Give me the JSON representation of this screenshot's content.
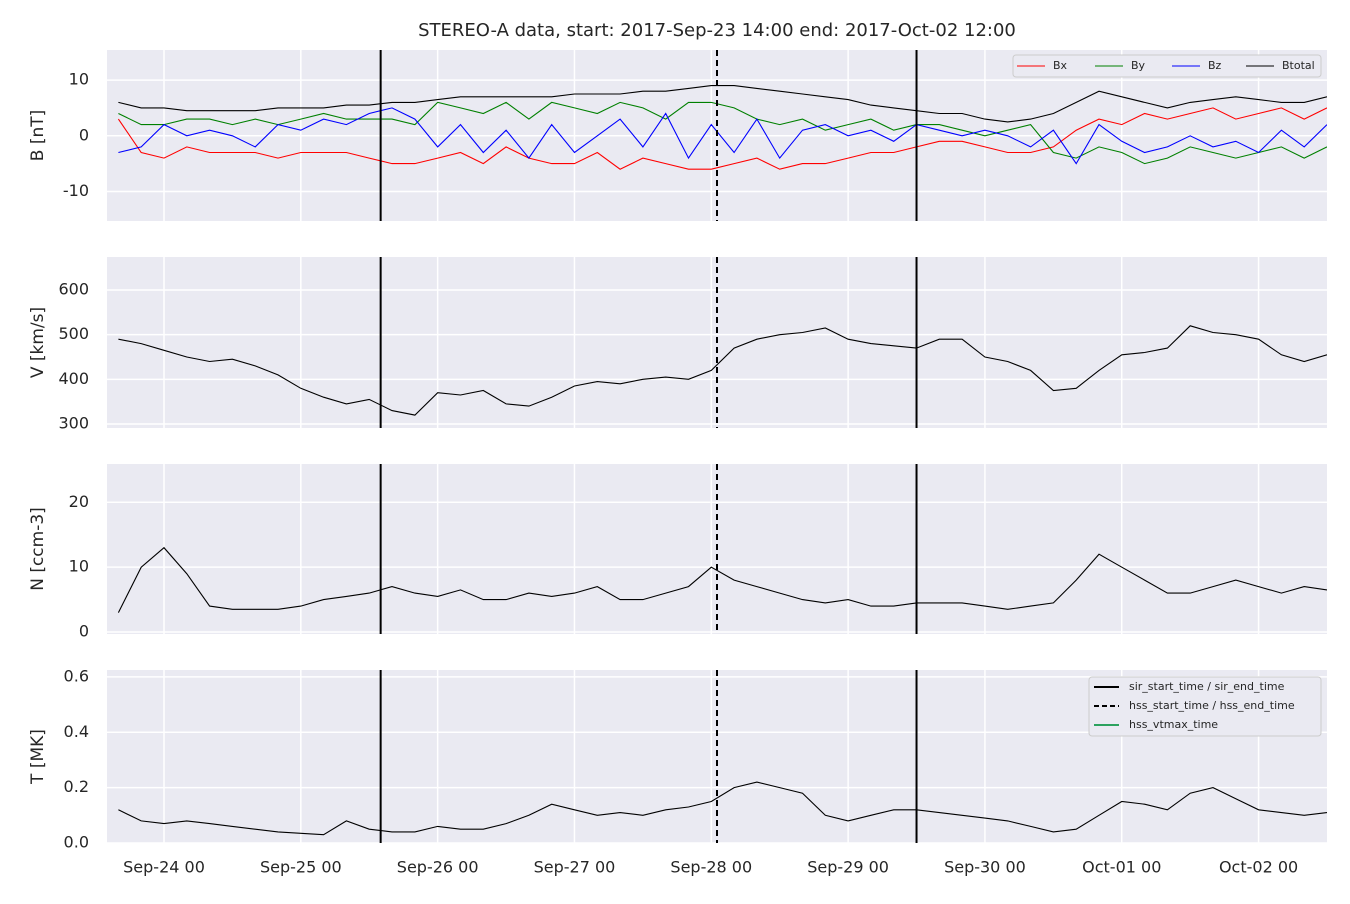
{
  "title": "STEREO-A data, start: 2017-Sep-23 14:00  end: 2017-Oct-02 12:00",
  "events": [
    {
      "name": "sir_start_time / sir_end_time",
      "color": "#000000",
      "dash": "solid",
      "times": [
        "2017-09-25 14:00",
        "2017-09-29 12:00"
      ]
    },
    {
      "name": "hss_start_time / hss_end_time",
      "color": "#000000",
      "dash": "dashed",
      "times": [
        "2017-09-28 01:00"
      ]
    },
    {
      "name": "hss_vtmax_time",
      "color": "#2ca25f",
      "dash": "solid",
      "times": []
    }
  ],
  "chart_data": [
    {
      "type": "line",
      "ylabel": "B [nT]",
      "ylim": [
        -15.3,
        15.4
      ],
      "yticks": [
        -10,
        0,
        10
      ],
      "grid": true,
      "legend": "upper right",
      "xlim": [
        "2017-09-23 14:00",
        "2017-10-02 12:00"
      ],
      "xticks": [
        {
          "value": "2017-09-24 00:00",
          "label": "Sep-24 00"
        },
        {
          "value": "2017-09-25 00:00",
          "label": "Sep-25 00"
        },
        {
          "value": "2017-09-26 00:00",
          "label": "Sep-26 00"
        },
        {
          "value": "2017-09-27 00:00",
          "label": "Sep-27 00"
        },
        {
          "value": "2017-09-28 00:00",
          "label": "Sep-28 00"
        },
        {
          "value": "2017-09-29 00:00",
          "label": "Sep-29 00"
        },
        {
          "value": "2017-09-30 00:00",
          "label": "Sep-30 00"
        },
        {
          "value": "2017-10-01 00:00",
          "label": "Oct-01 00"
        },
        {
          "value": "2017-10-02 00:00",
          "label": "Oct-02 00"
        }
      ],
      "x": [
        "2017-09-23 16:00",
        "2017-09-23 20:00",
        "2017-09-24 00:00",
        "2017-09-24 04:00",
        "2017-09-24 08:00",
        "2017-09-24 12:00",
        "2017-09-24 16:00",
        "2017-09-24 20:00",
        "2017-09-25 00:00",
        "2017-09-25 04:00",
        "2017-09-25 08:00",
        "2017-09-25 12:00",
        "2017-09-25 16:00",
        "2017-09-25 20:00",
        "2017-09-26 00:00",
        "2017-09-26 04:00",
        "2017-09-26 08:00",
        "2017-09-26 12:00",
        "2017-09-26 16:00",
        "2017-09-26 20:00",
        "2017-09-27 00:00",
        "2017-09-27 04:00",
        "2017-09-27 08:00",
        "2017-09-27 12:00",
        "2017-09-27 16:00",
        "2017-09-27 20:00",
        "2017-09-28 00:00",
        "2017-09-28 04:00",
        "2017-09-28 08:00",
        "2017-09-28 12:00",
        "2017-09-28 16:00",
        "2017-09-28 20:00",
        "2017-09-29 00:00",
        "2017-09-29 04:00",
        "2017-09-29 08:00",
        "2017-09-29 12:00",
        "2017-09-29 16:00",
        "2017-09-29 20:00",
        "2017-09-30 00:00",
        "2017-09-30 04:00",
        "2017-09-30 08:00",
        "2017-09-30 12:00",
        "2017-09-30 16:00",
        "2017-09-30 20:00",
        "2017-10-01 00:00",
        "2017-10-01 04:00",
        "2017-10-01 08:00",
        "2017-10-01 12:00",
        "2017-10-01 16:00",
        "2017-10-01 20:00",
        "2017-10-02 00:00",
        "2017-10-02 04:00",
        "2017-10-02 08:00",
        "2017-10-02 12:00"
      ],
      "series": [
        {
          "name": "Bx",
          "color": "#ff0000",
          "values": [
            3,
            -3,
            -4,
            -2,
            -3,
            -3,
            -3,
            -4,
            -3,
            -3,
            -3,
            -4,
            -5,
            -5,
            -4,
            -3,
            -5,
            -2,
            -4,
            -5,
            -5,
            -3,
            -6,
            -4,
            -5,
            -6,
            -6,
            -5,
            -4,
            -6,
            -5,
            -5,
            -4,
            -3,
            -3,
            -2,
            -1,
            -1,
            -2,
            -3,
            -3,
            -2,
            1,
            3,
            2,
            4,
            3,
            4,
            5,
            3,
            4,
            5,
            3,
            5
          ]
        },
        {
          "name": "By",
          "color": "#008000",
          "values": [
            4,
            2,
            2,
            3,
            3,
            2,
            3,
            2,
            3,
            4,
            3,
            3,
            3,
            2,
            6,
            5,
            4,
            6,
            3,
            6,
            5,
            4,
            6,
            5,
            3,
            6,
            6,
            5,
            3,
            2,
            3,
            1,
            2,
            3,
            1,
            2,
            2,
            1,
            0,
            1,
            2,
            -3,
            -4,
            -2,
            -3,
            -5,
            -4,
            -2,
            -3,
            -4,
            -3,
            -2,
            -4,
            -2
          ]
        },
        {
          "name": "Bz",
          "color": "#0000ff",
          "values": [
            -3,
            -2,
            2,
            0,
            1,
            0,
            -2,
            2,
            1,
            3,
            2,
            4,
            5,
            3,
            -2,
            2,
            -3,
            1,
            -4,
            2,
            -3,
            0,
            3,
            -2,
            4,
            -4,
            2,
            -3,
            3,
            -4,
            1,
            2,
            0,
            1,
            -1,
            2,
            1,
            0,
            1,
            0,
            -2,
            1,
            -5,
            2,
            -1,
            -3,
            -2,
            0,
            -2,
            -1,
            -3,
            1,
            -2,
            2
          ]
        },
        {
          "name": "Btotal",
          "color": "#000000",
          "values": [
            6,
            5,
            5,
            4.5,
            4.5,
            4.5,
            4.5,
            5,
            5,
            5,
            5.5,
            5.5,
            6,
            6,
            6.5,
            7,
            7,
            7,
            7,
            7,
            7.5,
            7.5,
            7.5,
            8,
            8,
            8.5,
            9,
            9,
            8.5,
            8,
            7.5,
            7,
            6.5,
            5.5,
            5,
            4.5,
            4,
            4,
            3,
            2.5,
            3,
            4,
            6,
            8,
            7,
            6,
            5,
            6,
            6.5,
            7,
            6.5,
            6,
            6,
            7
          ]
        }
      ]
    },
    {
      "type": "line",
      "ylabel": "V [km/s]",
      "ylim": [
        291,
        674
      ],
      "yticks": [
        300,
        400,
        500,
        600
      ],
      "grid": true,
      "xlim": [
        "2017-09-23 14:00",
        "2017-10-02 12:00"
      ],
      "xticks": [
        {
          "value": "2017-09-24 00:00",
          "label": "Sep-24 00"
        },
        {
          "value": "2017-09-25 00:00",
          "label": "Sep-25 00"
        },
        {
          "value": "2017-09-26 00:00",
          "label": "Sep-26 00"
        },
        {
          "value": "2017-09-27 00:00",
          "label": "Sep-27 00"
        },
        {
          "value": "2017-09-28 00:00",
          "label": "Sep-28 00"
        },
        {
          "value": "2017-09-29 00:00",
          "label": "Sep-29 00"
        },
        {
          "value": "2017-09-30 00:00",
          "label": "Sep-30 00"
        },
        {
          "value": "2017-10-01 00:00",
          "label": "Oct-01 00"
        },
        {
          "value": "2017-10-02 00:00",
          "label": "Oct-02 00"
        }
      ],
      "x": [
        "2017-09-23 16:00",
        "2017-09-23 20:00",
        "2017-09-24 00:00",
        "2017-09-24 04:00",
        "2017-09-24 08:00",
        "2017-09-24 12:00",
        "2017-09-24 16:00",
        "2017-09-24 20:00",
        "2017-09-25 00:00",
        "2017-09-25 04:00",
        "2017-09-25 08:00",
        "2017-09-25 12:00",
        "2017-09-25 16:00",
        "2017-09-25 20:00",
        "2017-09-26 00:00",
        "2017-09-26 04:00",
        "2017-09-26 08:00",
        "2017-09-26 12:00",
        "2017-09-26 16:00",
        "2017-09-26 20:00",
        "2017-09-27 00:00",
        "2017-09-27 04:00",
        "2017-09-27 08:00",
        "2017-09-27 12:00",
        "2017-09-27 16:00",
        "2017-09-27 20:00",
        "2017-09-28 00:00",
        "2017-09-28 04:00",
        "2017-09-28 08:00",
        "2017-09-28 12:00",
        "2017-09-28 16:00",
        "2017-09-28 20:00",
        "2017-09-29 00:00",
        "2017-09-29 04:00",
        "2017-09-29 08:00",
        "2017-09-29 12:00",
        "2017-09-29 16:00",
        "2017-09-29 20:00",
        "2017-09-30 00:00",
        "2017-09-30 04:00",
        "2017-09-30 08:00",
        "2017-09-30 12:00",
        "2017-09-30 16:00",
        "2017-09-30 20:00",
        "2017-10-01 00:00",
        "2017-10-01 04:00",
        "2017-10-01 08:00",
        "2017-10-01 12:00",
        "2017-10-01 16:00",
        "2017-10-01 20:00",
        "2017-10-02 00:00",
        "2017-10-02 04:00",
        "2017-10-02 08:00",
        "2017-10-02 12:00"
      ],
      "series": [
        {
          "color": "#000000",
          "values": [
            490,
            480,
            465,
            450,
            440,
            445,
            430,
            410,
            380,
            360,
            345,
            355,
            330,
            320,
            370,
            365,
            375,
            345,
            340,
            360,
            385,
            395,
            390,
            400,
            405,
            400,
            420,
            470,
            490,
            500,
            505,
            515,
            490,
            480,
            475,
            470,
            490,
            490,
            450,
            440,
            420,
            375,
            380,
            420,
            455,
            460,
            470,
            520,
            505,
            500,
            490,
            455,
            440,
            455
          ]
        }
      ]
    },
    {
      "type": "line",
      "ylabel": "N [ccm-3]",
      "ylim": [
        -0.3,
        25.9
      ],
      "yticks": [
        0,
        10,
        20
      ],
      "grid": true,
      "xlim": [
        "2017-09-23 14:00",
        "2017-10-02 12:00"
      ],
      "xticks": [
        {
          "value": "2017-09-24 00:00",
          "label": "Sep-24 00"
        },
        {
          "value": "2017-09-25 00:00",
          "label": "Sep-25 00"
        },
        {
          "value": "2017-09-26 00:00",
          "label": "Sep-26 00"
        },
        {
          "value": "2017-09-27 00:00",
          "label": "Sep-27 00"
        },
        {
          "value": "2017-09-28 00:00",
          "label": "Sep-28 00"
        },
        {
          "value": "2017-09-29 00:00",
          "label": "Sep-29 00"
        },
        {
          "value": "2017-09-30 00:00",
          "label": "Sep-30 00"
        },
        {
          "value": "2017-10-01 00:00",
          "label": "Oct-01 00"
        },
        {
          "value": "2017-10-02 00:00",
          "label": "Oct-02 00"
        }
      ],
      "x": [
        "2017-09-23 16:00",
        "2017-09-23 20:00",
        "2017-09-24 00:00",
        "2017-09-24 04:00",
        "2017-09-24 08:00",
        "2017-09-24 12:00",
        "2017-09-24 16:00",
        "2017-09-24 20:00",
        "2017-09-25 00:00",
        "2017-09-25 04:00",
        "2017-09-25 08:00",
        "2017-09-25 12:00",
        "2017-09-25 16:00",
        "2017-09-25 20:00",
        "2017-09-26 00:00",
        "2017-09-26 04:00",
        "2017-09-26 08:00",
        "2017-09-26 12:00",
        "2017-09-26 16:00",
        "2017-09-26 20:00",
        "2017-09-27 00:00",
        "2017-09-27 04:00",
        "2017-09-27 08:00",
        "2017-09-27 12:00",
        "2017-09-27 16:00",
        "2017-09-27 20:00",
        "2017-09-28 00:00",
        "2017-09-28 04:00",
        "2017-09-28 08:00",
        "2017-09-28 12:00",
        "2017-09-28 16:00",
        "2017-09-28 20:00",
        "2017-09-29 00:00",
        "2017-09-29 04:00",
        "2017-09-29 08:00",
        "2017-09-29 12:00",
        "2017-09-29 16:00",
        "2017-09-29 20:00",
        "2017-09-30 00:00",
        "2017-09-30 04:00",
        "2017-09-30 08:00",
        "2017-09-30 12:00",
        "2017-09-30 16:00",
        "2017-09-30 20:00",
        "2017-10-01 00:00",
        "2017-10-01 04:00",
        "2017-10-01 08:00",
        "2017-10-01 12:00",
        "2017-10-01 16:00",
        "2017-10-01 20:00",
        "2017-10-02 00:00",
        "2017-10-02 04:00",
        "2017-10-02 08:00",
        "2017-10-02 12:00"
      ],
      "series": [
        {
          "color": "#000000",
          "values": [
            3,
            10,
            13,
            9,
            4,
            3.5,
            3.5,
            3.5,
            4,
            5,
            5.5,
            6,
            7,
            6,
            5.5,
            6.5,
            5,
            5,
            6,
            5.5,
            6,
            7,
            5,
            5,
            6,
            7,
            10,
            8,
            7,
            6,
            5,
            4.5,
            5,
            4,
            4,
            4.5,
            4.5,
            4.5,
            4,
            3.5,
            4,
            4.5,
            8,
            12,
            10,
            8,
            6,
            6,
            7,
            8,
            7,
            6,
            7,
            6.5
          ]
        }
      ]
    },
    {
      "type": "line",
      "ylabel": "T [MK]",
      "ylim": [
        0,
        0.625
      ],
      "yticks": [
        {
          "value": 0,
          "label": "0.0"
        },
        0.2,
        0.4,
        0.6
      ],
      "grid": true,
      "legend": "upper right",
      "xlim": [
        "2017-09-23 14:00",
        "2017-10-02 12:00"
      ],
      "xticks": [
        {
          "value": "2017-09-24 00:00",
          "label": "Sep-24 00"
        },
        {
          "value": "2017-09-25 00:00",
          "label": "Sep-25 00"
        },
        {
          "value": "2017-09-26 00:00",
          "label": "Sep-26 00"
        },
        {
          "value": "2017-09-27 00:00",
          "label": "Sep-27 00"
        },
        {
          "value": "2017-09-28 00:00",
          "label": "Sep-28 00"
        },
        {
          "value": "2017-09-29 00:00",
          "label": "Sep-29 00"
        },
        {
          "value": "2017-09-30 00:00",
          "label": "Sep-30 00"
        },
        {
          "value": "2017-10-01 00:00",
          "label": "Oct-01 00"
        },
        {
          "value": "2017-10-02 00:00",
          "label": "Oct-02 00"
        }
      ],
      "x": [
        "2017-09-23 16:00",
        "2017-09-23 20:00",
        "2017-09-24 00:00",
        "2017-09-24 04:00",
        "2017-09-24 08:00",
        "2017-09-24 12:00",
        "2017-09-24 16:00",
        "2017-09-24 20:00",
        "2017-09-25 00:00",
        "2017-09-25 04:00",
        "2017-09-25 08:00",
        "2017-09-25 12:00",
        "2017-09-25 16:00",
        "2017-09-25 20:00",
        "2017-09-26 00:00",
        "2017-09-26 04:00",
        "2017-09-26 08:00",
        "2017-09-26 12:00",
        "2017-09-26 16:00",
        "2017-09-26 20:00",
        "2017-09-27 00:00",
        "2017-09-27 04:00",
        "2017-09-27 08:00",
        "2017-09-27 12:00",
        "2017-09-27 16:00",
        "2017-09-27 20:00",
        "2017-09-28 00:00",
        "2017-09-28 04:00",
        "2017-09-28 08:00",
        "2017-09-28 12:00",
        "2017-09-28 16:00",
        "2017-09-28 20:00",
        "2017-09-29 00:00",
        "2017-09-29 04:00",
        "2017-09-29 08:00",
        "2017-09-29 12:00",
        "2017-09-29 16:00",
        "2017-09-29 20:00",
        "2017-09-30 00:00",
        "2017-09-30 04:00",
        "2017-09-30 08:00",
        "2017-09-30 12:00",
        "2017-09-30 16:00",
        "2017-09-30 20:00",
        "2017-10-01 00:00",
        "2017-10-01 04:00",
        "2017-10-01 08:00",
        "2017-10-01 12:00",
        "2017-10-01 16:00",
        "2017-10-01 20:00",
        "2017-10-02 00:00",
        "2017-10-02 04:00",
        "2017-10-02 08:00",
        "2017-10-02 12:00"
      ],
      "series": [
        {
          "color": "#000000",
          "values": [
            0.12,
            0.08,
            0.07,
            0.08,
            0.07,
            0.06,
            0.05,
            0.04,
            0.035,
            0.03,
            0.08,
            0.05,
            0.04,
            0.04,
            0.06,
            0.05,
            0.05,
            0.07,
            0.1,
            0.14,
            0.12,
            0.1,
            0.11,
            0.1,
            0.12,
            0.13,
            0.15,
            0.2,
            0.22,
            0.2,
            0.18,
            0.1,
            0.08,
            0.1,
            0.12,
            0.12,
            0.11,
            0.1,
            0.09,
            0.08,
            0.06,
            0.04,
            0.05,
            0.1,
            0.15,
            0.14,
            0.12,
            0.18,
            0.2,
            0.16,
            0.12,
            0.11,
            0.1,
            0.11
          ]
        }
      ]
    }
  ]
}
